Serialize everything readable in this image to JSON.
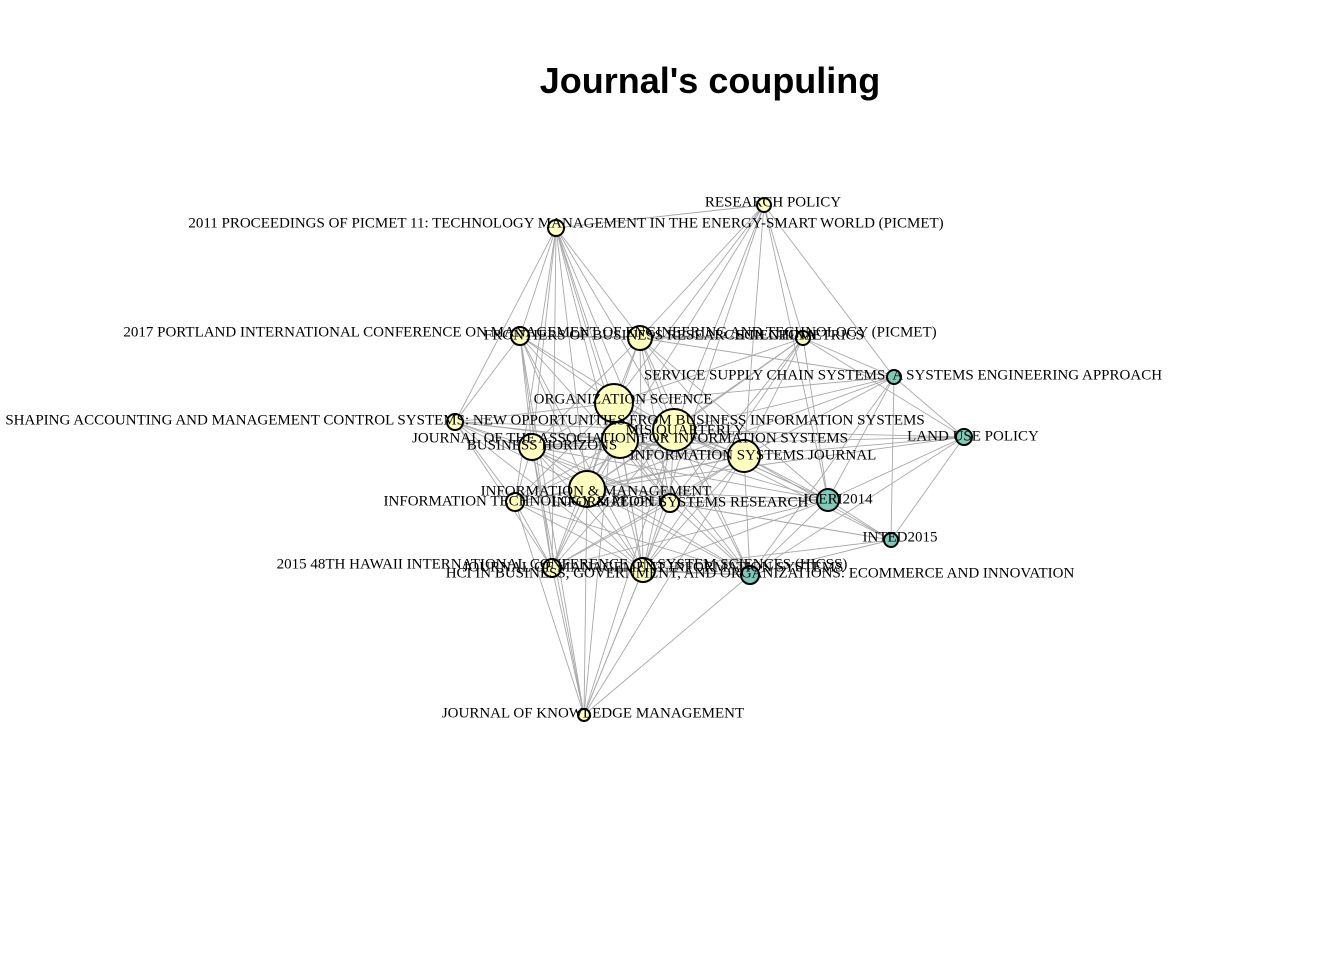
{
  "title": "Journal's coupuling",
  "colors": {
    "cluster_1": "#ffffbf",
    "cluster_2": "#80c8b8",
    "edge": "#a8a8a8",
    "node_border": "#000000"
  },
  "nodes": [
    {
      "id": "research-policy",
      "label": "RESEARCH POLICY",
      "cluster": "cluster_1"
    },
    {
      "id": "picmet-2011",
      "label": "2011 PROCEEDINGS OF PICMET 11: TECHNOLOGY MANAGEMENT IN THE ENERGY-SMART   WORLD (PICMET)",
      "cluster": "cluster_1"
    },
    {
      "id": "picmet-2017",
      "label": "2017 PORTLAND INTERNATIONAL CONFERENCE ON MANAGEMENT OF ENGINEERING AND   TECHNOLOGY (PICMET)",
      "cluster": "cluster_1"
    },
    {
      "id": "frontiers-business",
      "label": "FRONTIERS OF BUSINESS RESEARCH IN CHINA",
      "cluster": "cluster_1"
    },
    {
      "id": "scientometrics",
      "label": "SCIENTOMETRICS",
      "cluster": "cluster_1"
    },
    {
      "id": "service-supply",
      "label": "SERVICE SUPPLY CHAIN SYSTEMS: A SYSTEMS ENGINEERING APPROACH",
      "cluster": "cluster_2"
    },
    {
      "id": "organization-science",
      "label": "ORGANIZATION SCIENCE",
      "cluster": "cluster_1"
    },
    {
      "id": "shaping-accounting",
      "label": "SHAPING ACCOUNTING AND MANAGEMENT CONTROL SYSTEMS: NEW OPPORTUNITIES   FROM BUSINESS INFORMATION SYSTEMS",
      "cluster": "cluster_1"
    },
    {
      "id": "mis-quarterly",
      "label": "MIS QUARTERLY",
      "cluster": "cluster_1"
    },
    {
      "id": "land-use-policy",
      "label": "LAND USE POLICY",
      "cluster": "cluster_2"
    },
    {
      "id": "jais",
      "label": "JOURNAL OF THE ASSOCIATION FOR INFORMATION SYSTEMS",
      "cluster": "cluster_1"
    },
    {
      "id": "business-horizons",
      "label": "BUSINESS HORIZONS",
      "cluster": "cluster_1"
    },
    {
      "id": "isj",
      "label": "INFORMATION SYSTEMS JOURNAL",
      "cluster": "cluster_1"
    },
    {
      "id": "info-management",
      "label": "INFORMATION & MANAGEMENT",
      "cluster": "cluster_1"
    },
    {
      "id": "it-people",
      "label": "INFORMATION TECHNOLOGY & PEOPLE",
      "cluster": "cluster_1"
    },
    {
      "id": "isr",
      "label": "INFORMATION SYSTEMS RESEARCH",
      "cluster": "cluster_1"
    },
    {
      "id": "iceri2014",
      "label": "ICERI2014",
      "cluster": "cluster_2"
    },
    {
      "id": "inted2015",
      "label": "INTED2015",
      "cluster": "cluster_2"
    },
    {
      "id": "hicss-2015",
      "label": "2015 48TH HAWAII INTERNATIONAL CONFERENCE ON SYSTEM SCIENCES (HICSS)",
      "cluster": "cluster_1"
    },
    {
      "id": "jmis",
      "label": "JOURNAL OF MANAGEMENT INFORMATION SYSTEMS",
      "cluster": "cluster_1"
    },
    {
      "id": "hci-business",
      "label": "HCI IN BUSINESS, GOVERNMENT, AND ORGANIZATIONS: ECOMMERCE AND   INNOVATION",
      "cluster": "cluster_2"
    },
    {
      "id": "jkm",
      "label": "JOURNAL OF KNOWLEDGE MANAGEMENT",
      "cluster": "cluster_1"
    }
  ],
  "edges": [
    [
      "picmet-2011",
      "research-policy"
    ],
    [
      "picmet-2011",
      "picmet-2017"
    ],
    [
      "picmet-2011",
      "frontiers-business"
    ],
    [
      "picmet-2011",
      "organization-science"
    ],
    [
      "picmet-2011",
      "mis-quarterly"
    ],
    [
      "picmet-2011",
      "jais"
    ],
    [
      "picmet-2011",
      "business-horizons"
    ],
    [
      "picmet-2011",
      "info-management"
    ],
    [
      "picmet-2011",
      "it-people"
    ],
    [
      "picmet-2011",
      "isr"
    ],
    [
      "picmet-2011",
      "hicss-2015"
    ],
    [
      "picmet-2011",
      "jmis"
    ],
    [
      "picmet-2011",
      "shaping-accounting"
    ],
    [
      "research-policy",
      "frontiers-business"
    ],
    [
      "research-policy",
      "scientometrics"
    ],
    [
      "research-policy",
      "organization-science"
    ],
    [
      "research-policy",
      "mis-quarterly"
    ],
    [
      "research-policy",
      "isj"
    ],
    [
      "research-policy",
      "icer2014-x"
    ],
    [
      "research-policy",
      "service-supply"
    ],
    [
      "research-policy",
      "info-management"
    ],
    [
      "research-policy",
      "jmis"
    ],
    [
      "picmet-2017",
      "frontiers-business"
    ],
    [
      "picmet-2017",
      "organization-science"
    ],
    [
      "picmet-2017",
      "mis-quarterly"
    ],
    [
      "picmet-2017",
      "business-horizons"
    ],
    [
      "picmet-2017",
      "info-management"
    ],
    [
      "picmet-2017",
      "isr"
    ],
    [
      "picmet-2017",
      "hicss-2015"
    ],
    [
      "picmet-2017",
      "jmis"
    ],
    [
      "picmet-2017",
      "scientometrics"
    ],
    [
      "picmet-2017",
      "shaping-accounting"
    ],
    [
      "picmet-2017",
      "jkm"
    ],
    [
      "frontiers-business",
      "organization-science"
    ],
    [
      "frontiers-business",
      "mis-quarterly"
    ],
    [
      "frontiers-business",
      "isj"
    ],
    [
      "frontiers-business",
      "info-management"
    ],
    [
      "frontiers-business",
      "isr"
    ],
    [
      "frontiers-business",
      "jmis"
    ],
    [
      "frontiers-business",
      "scientometrics"
    ],
    [
      "frontiers-business",
      "business-horizons"
    ],
    [
      "frontiers-business",
      "service-supply"
    ],
    [
      "frontiers-business",
      "icer2014-x"
    ],
    [
      "frontiers-business",
      "hci-business"
    ],
    [
      "scientometrics",
      "organization-science"
    ],
    [
      "scientometrics",
      "mis-quarterly"
    ],
    [
      "scientometrics",
      "isj"
    ],
    [
      "scientometrics",
      "info-management"
    ],
    [
      "scientometrics",
      "isr"
    ],
    [
      "scientometrics",
      "service-supply"
    ],
    [
      "scientometrics",
      "land-use-policy"
    ],
    [
      "scientometrics",
      "icer2014-x"
    ],
    [
      "scientometrics",
      "jmis"
    ],
    [
      "service-supply",
      "mis-quarterly"
    ],
    [
      "service-supply",
      "isj"
    ],
    [
      "service-supply",
      "icer2014-x"
    ],
    [
      "service-supply",
      "inted2015"
    ],
    [
      "service-supply",
      "hci-business"
    ],
    [
      "service-supply",
      "organization-science"
    ],
    [
      "service-supply",
      "land-use-policy"
    ],
    [
      "service-supply",
      "info-management"
    ],
    [
      "land-use-policy",
      "isj"
    ],
    [
      "land-use-policy",
      "mis-quarterly"
    ],
    [
      "land-use-policy",
      "icer2014-x"
    ],
    [
      "land-use-policy",
      "inted2015"
    ],
    [
      "land-use-policy",
      "hci-business"
    ],
    [
      "land-use-policy",
      "business-horizons"
    ],
    [
      "land-use-policy",
      "info-management"
    ],
    [
      "shaping-accounting",
      "organization-science"
    ],
    [
      "shaping-accounting",
      "mis-quarterly"
    ],
    [
      "shaping-accounting",
      "jais"
    ],
    [
      "shaping-accounting",
      "business-horizons"
    ],
    [
      "shaping-accounting",
      "info-management"
    ],
    [
      "shaping-accounting",
      "it-people"
    ],
    [
      "shaping-accounting",
      "isr"
    ],
    [
      "shaping-accounting",
      "hicss-2015"
    ],
    [
      "shaping-accounting",
      "jmis"
    ],
    [
      "shaping-accounting",
      "isj"
    ],
    [
      "organization-science",
      "mis-quarterly"
    ],
    [
      "organization-science",
      "jais"
    ],
    [
      "organization-science",
      "business-horizons"
    ],
    [
      "organization-science",
      "isj"
    ],
    [
      "organization-science",
      "info-management"
    ],
    [
      "organization-science",
      "it-people"
    ],
    [
      "organization-science",
      "isr"
    ],
    [
      "organization-science",
      "hicss-2015"
    ],
    [
      "organization-science",
      "jmis"
    ],
    [
      "organization-science",
      "icer2014-x"
    ],
    [
      "organization-science",
      "hci-business"
    ],
    [
      "organization-science",
      "jkm"
    ],
    [
      "mis-quarterly",
      "jais"
    ],
    [
      "mis-quarterly",
      "business-horizons"
    ],
    [
      "mis-quarterly",
      "isj"
    ],
    [
      "mis-quarterly",
      "info-management"
    ],
    [
      "mis-quarterly",
      "it-people"
    ],
    [
      "mis-quarterly",
      "isr"
    ],
    [
      "mis-quarterly",
      "hicss-2015"
    ],
    [
      "mis-quarterly",
      "jmis"
    ],
    [
      "mis-quarterly",
      "icer2014-x"
    ],
    [
      "mis-quarterly",
      "inted2015"
    ],
    [
      "mis-quarterly",
      "hci-business"
    ],
    [
      "mis-quarterly",
      "jkm"
    ],
    [
      "jais",
      "business-horizons"
    ],
    [
      "jais",
      "isj"
    ],
    [
      "jais",
      "info-management"
    ],
    [
      "jais",
      "it-people"
    ],
    [
      "jais",
      "isr"
    ],
    [
      "jais",
      "hicss-2015"
    ],
    [
      "jais",
      "jmis"
    ],
    [
      "jais",
      "hci-business"
    ],
    [
      "jais",
      "icer2014-x"
    ],
    [
      "business-horizons",
      "isj"
    ],
    [
      "business-horizons",
      "info-management"
    ],
    [
      "business-horizons",
      "it-people"
    ],
    [
      "business-horizons",
      "isr"
    ],
    [
      "business-horizons",
      "hicss-2015"
    ],
    [
      "business-horizons",
      "jmis"
    ],
    [
      "business-horizons",
      "hci-business"
    ],
    [
      "business-horizons",
      "jkm"
    ],
    [
      "business-horizons",
      "icer2014-x"
    ],
    [
      "isj",
      "info-management"
    ],
    [
      "isj",
      "it-people"
    ],
    [
      "isj",
      "isr"
    ],
    [
      "isj",
      "hicss-2015"
    ],
    [
      "isj",
      "jmis"
    ],
    [
      "isj",
      "icer2014-x"
    ],
    [
      "isj",
      "inted2015"
    ],
    [
      "isj",
      "hci-business"
    ],
    [
      "isj",
      "jkm"
    ],
    [
      "info-management",
      "it-people"
    ],
    [
      "info-management",
      "isr"
    ],
    [
      "info-management",
      "hicss-2015"
    ],
    [
      "info-management",
      "jmis"
    ],
    [
      "info-management",
      "icer2014-x"
    ],
    [
      "info-management",
      "inted2015"
    ],
    [
      "info-management",
      "hci-business"
    ],
    [
      "info-management",
      "jkm"
    ],
    [
      "it-people",
      "isr"
    ],
    [
      "it-people",
      "hicss-2015"
    ],
    [
      "it-people",
      "jmis"
    ],
    [
      "it-people",
      "hci-business"
    ],
    [
      "it-people",
      "jkm"
    ],
    [
      "isr",
      "hicss-2015"
    ],
    [
      "isr",
      "jmis"
    ],
    [
      "isr",
      "icer2014-x"
    ],
    [
      "isr",
      "inted2015"
    ],
    [
      "isr",
      "hci-business"
    ],
    [
      "isr",
      "jkm"
    ],
    [
      "icer2014-x",
      "inted2015"
    ],
    [
      "icer2014-x",
      "hci-business"
    ],
    [
      "icer2014-x",
      "jmis"
    ],
    [
      "icer2014-x",
      "hicss-2015"
    ],
    [
      "inted2015",
      "hci-business"
    ],
    [
      "inted2015",
      "jmis"
    ],
    [
      "hicss-2015",
      "jmis"
    ],
    [
      "hicss-2015",
      "hci-business"
    ],
    [
      "hicss-2015",
      "jkm"
    ],
    [
      "jmis",
      "hci-business"
    ],
    [
      "jmis",
      "jkm"
    ],
    [
      "hci-business",
      "jkm"
    ]
  ]
}
